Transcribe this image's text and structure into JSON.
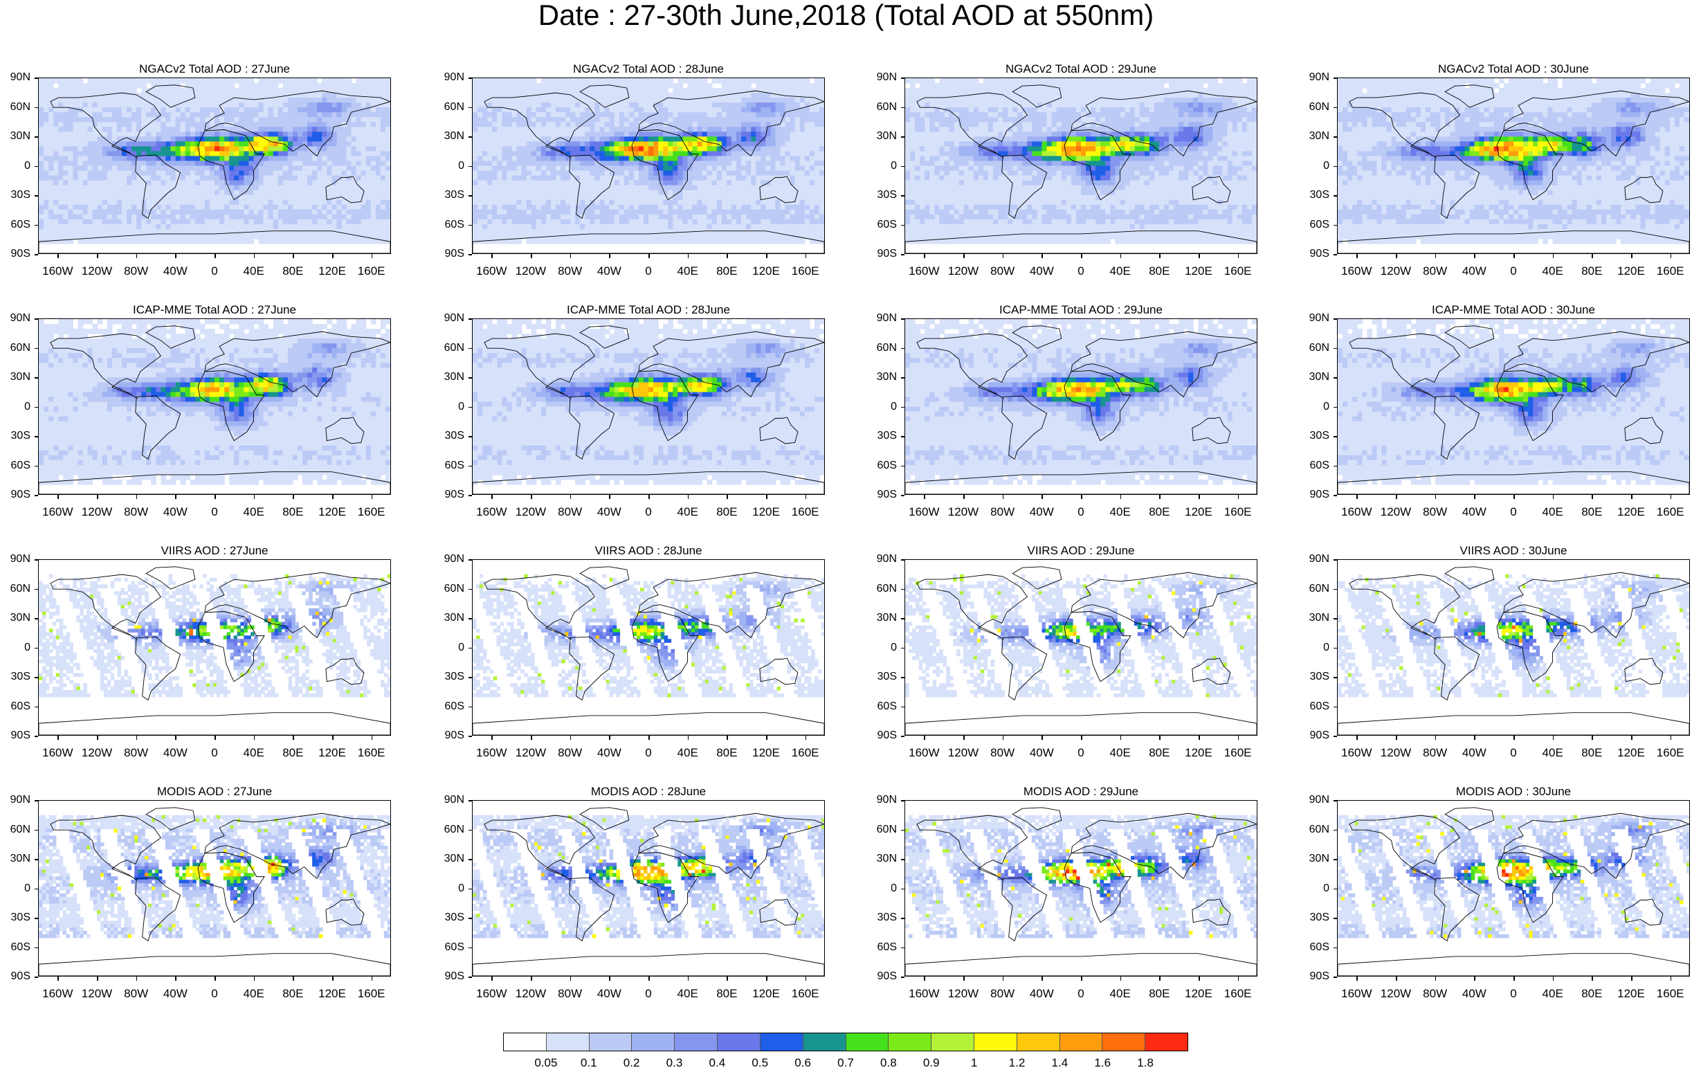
{
  "main_title": "Date : 27-30th June,2018 (Total AOD at 550nm)",
  "colorbar": {
    "labels": [
      "0.05",
      "0.1",
      "0.2",
      "0.3",
      "0.4",
      "0.5",
      "0.6",
      "0.7",
      "0.8",
      "0.9",
      "1",
      "1.2",
      "1.4",
      "1.6",
      "1.8"
    ],
    "colors": [
      "#ffffff",
      "#d7e1fa",
      "#bccaf6",
      "#9fb3f3",
      "#8496ee",
      "#6a78ea",
      "#1f5ee8",
      "#17948f",
      "#47e01c",
      "#7bea19",
      "#b4f236",
      "#fffa0a",
      "#ffc80a",
      "#ff9d0d",
      "#ff6f0e",
      "#ff2a12"
    ]
  },
  "axes": {
    "y_labels": [
      "90N",
      "60N",
      "30N",
      "0",
      "30S",
      "60S",
      "90S"
    ],
    "y_values": [
      90,
      60,
      30,
      0,
      -30,
      -60,
      -90
    ],
    "x_labels": [
      "160W",
      "120W",
      "80W",
      "40W",
      "0",
      "40E",
      "80E",
      "120E",
      "160E"
    ],
    "x_values": [
      -160,
      -120,
      -80,
      -40,
      0,
      40,
      80,
      120,
      160
    ],
    "xlim": [
      -180,
      180
    ],
    "ylim": [
      -90,
      90
    ]
  },
  "chart_data": [
    {
      "type": "heatmap",
      "row": 0,
      "col": 0,
      "source": "ngac",
      "title": "NGACv2 Total AOD : 27June"
    },
    {
      "type": "heatmap",
      "row": 0,
      "col": 1,
      "source": "ngac",
      "title": "NGACv2 Total AOD : 28June"
    },
    {
      "type": "heatmap",
      "row": 0,
      "col": 2,
      "source": "ngac",
      "title": "NGACv2 Total AOD : 29June"
    },
    {
      "type": "heatmap",
      "row": 0,
      "col": 3,
      "source": "ngac",
      "title": "NGACv2 Total AOD : 30June"
    },
    {
      "type": "heatmap",
      "row": 1,
      "col": 0,
      "source": "icap",
      "title": "ICAP-MME Total AOD : 27June"
    },
    {
      "type": "heatmap",
      "row": 1,
      "col": 1,
      "source": "icap",
      "title": "ICAP-MME Total AOD : 28June"
    },
    {
      "type": "heatmap",
      "row": 1,
      "col": 2,
      "source": "icap",
      "title": "ICAP-MME Total AOD : 29June"
    },
    {
      "type": "heatmap",
      "row": 1,
      "col": 3,
      "source": "icap",
      "title": "ICAP-MME Total AOD : 30June"
    },
    {
      "type": "heatmap",
      "row": 2,
      "col": 0,
      "source": "viirs",
      "title": "VIIRS AOD : 27June"
    },
    {
      "type": "heatmap",
      "row": 2,
      "col": 1,
      "source": "viirs",
      "title": "VIIRS AOD : 28June"
    },
    {
      "type": "heatmap",
      "row": 2,
      "col": 2,
      "source": "viirs",
      "title": "VIIRS AOD : 29June"
    },
    {
      "type": "heatmap",
      "row": 2,
      "col": 3,
      "source": "viirs",
      "title": "VIIRS AOD : 30June"
    },
    {
      "type": "heatmap",
      "row": 3,
      "col": 0,
      "source": "modis",
      "title": "MODIS AOD : 27June"
    },
    {
      "type": "heatmap",
      "row": 3,
      "col": 1,
      "source": "modis",
      "title": "MODIS AOD : 28June"
    },
    {
      "type": "heatmap",
      "row": 3,
      "col": 2,
      "source": "modis",
      "title": "MODIS AOD : 29June"
    },
    {
      "type": "heatmap",
      "row": 3,
      "col": 3,
      "source": "modis",
      "title": "MODIS AOD : 30June"
    }
  ]
}
